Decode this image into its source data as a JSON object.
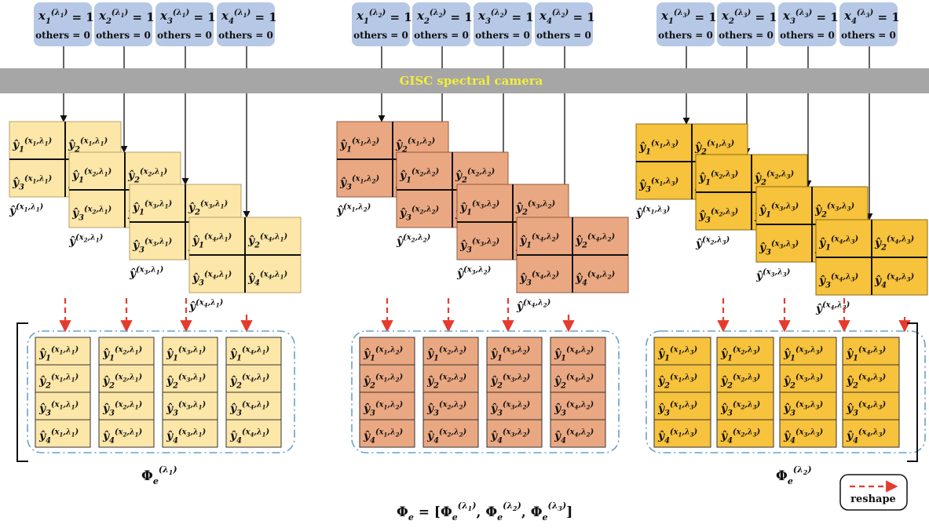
{
  "camera": {
    "label": "GISC spectral camera",
    "band_color": "#a6a6a6",
    "text_color": "#f3ee3a"
  },
  "groups": [
    {
      "lambda": "λ₁",
      "lambda_sub": "1",
      "fill": "#fce6a8",
      "stroke": "#b8a26a",
      "phi_label": "Φₑ(λ₁)"
    },
    {
      "lambda": "λ₂",
      "lambda_sub": "2",
      "fill": "#eaa882",
      "stroke": "#8e5a3c",
      "phi_label": "Φₑ(λ₂)"
    },
    {
      "lambda": "λ₃",
      "lambda_sub": "3",
      "fill": "#f7c23c",
      "stroke": "#8a6a10",
      "phi_label": "Φₑ(λ₃)"
    }
  ],
  "input_boxes": {
    "fill": "#b6c8e6",
    "top_line": "= 1",
    "bottom_line": "others = 0",
    "count": 4
  },
  "pixel_indices": [
    "1",
    "2",
    "3",
    "4"
  ],
  "source_indices": [
    "1",
    "2",
    "3",
    "4"
  ],
  "equation": "Φₑ = [Φₑ(λ₁), Φₑ(λ₂), Φₑ(λ₃)]",
  "legend": {
    "label": "reshape",
    "color": "#e53b2f"
  },
  "colors": {
    "arrow": "#111111",
    "dashed_arrow": "#e53b2f",
    "group_frame": "#6a9fcf"
  }
}
